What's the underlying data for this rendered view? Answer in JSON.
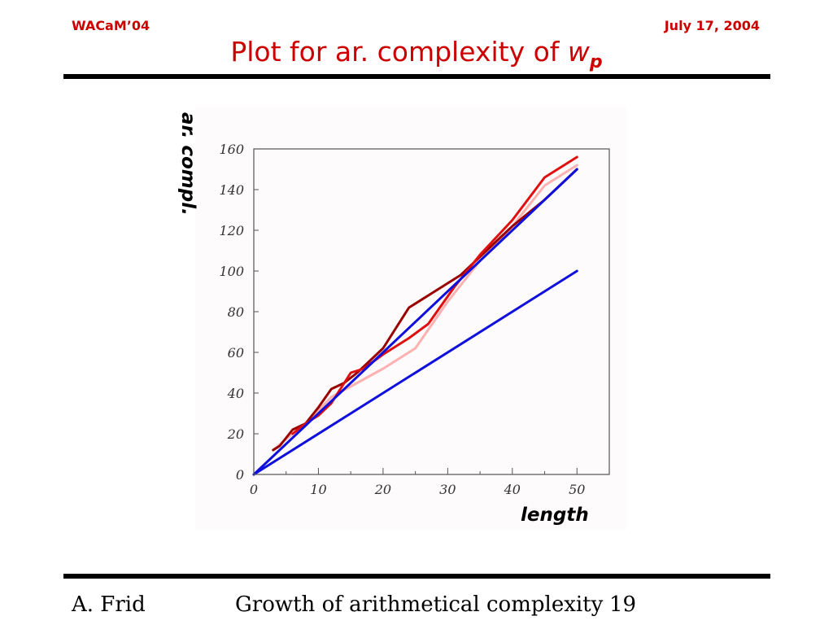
{
  "header": {
    "left": "WACaM’04",
    "right": "July 17, 2004"
  },
  "slide_title": {
    "text": "Plot for ar. complexity of ",
    "var": "w",
    "sub": "p"
  },
  "footer": {
    "author": "A. Frid",
    "title": "Growth of arithmetical complexity",
    "page": "19"
  },
  "colors": {
    "accent": "#cc0000",
    "rule": "#000000"
  },
  "chart_data": {
    "type": "line",
    "title": "",
    "xlabel": "length",
    "ylabel": "ar. compl.",
    "xlim": [
      0,
      55
    ],
    "ylim": [
      0,
      160
    ],
    "xticks": [
      0,
      10,
      20,
      30,
      40,
      50
    ],
    "yticks": [
      0,
      20,
      40,
      60,
      80,
      100,
      120,
      140,
      160
    ],
    "grid": false,
    "series": [
      {
        "color": "#ffb0b0",
        "points": [
          [
            3,
            12
          ],
          [
            6,
            20
          ],
          [
            8,
            25
          ],
          [
            12,
            38
          ],
          [
            16,
            45
          ],
          [
            20,
            52
          ],
          [
            25,
            62
          ],
          [
            30,
            85
          ],
          [
            35,
            105
          ],
          [
            40,
            122
          ],
          [
            45,
            142
          ],
          [
            50,
            152
          ]
        ]
      },
      {
        "color": "#990000",
        "points": [
          [
            3,
            12
          ],
          [
            4,
            14
          ],
          [
            6,
            22
          ],
          [
            8,
            25
          ],
          [
            10,
            33
          ],
          [
            12,
            42
          ],
          [
            14,
            45
          ],
          [
            16,
            50
          ],
          [
            20,
            62
          ],
          [
            24,
            82
          ],
          [
            28,
            90
          ],
          [
            32,
            98
          ],
          [
            36,
            110
          ],
          [
            40,
            122
          ],
          [
            45,
            135
          ],
          [
            50,
            150
          ]
        ]
      },
      {
        "color": "#e01010",
        "points": [
          [
            6,
            20
          ],
          [
            8,
            25
          ],
          [
            10,
            29
          ],
          [
            12,
            35
          ],
          [
            15,
            50
          ],
          [
            17,
            52
          ],
          [
            20,
            59
          ],
          [
            24,
            67
          ],
          [
            27,
            74
          ],
          [
            31,
            92
          ],
          [
            35,
            108
          ],
          [
            40,
            125
          ],
          [
            45,
            146
          ],
          [
            50,
            156
          ]
        ]
      },
      {
        "color": "#1010dd",
        "points": [
          [
            0,
            0
          ],
          [
            50,
            150
          ]
        ]
      },
      {
        "color": "#1010dd",
        "points": [
          [
            0,
            0
          ],
          [
            50,
            100
          ]
        ]
      }
    ]
  }
}
